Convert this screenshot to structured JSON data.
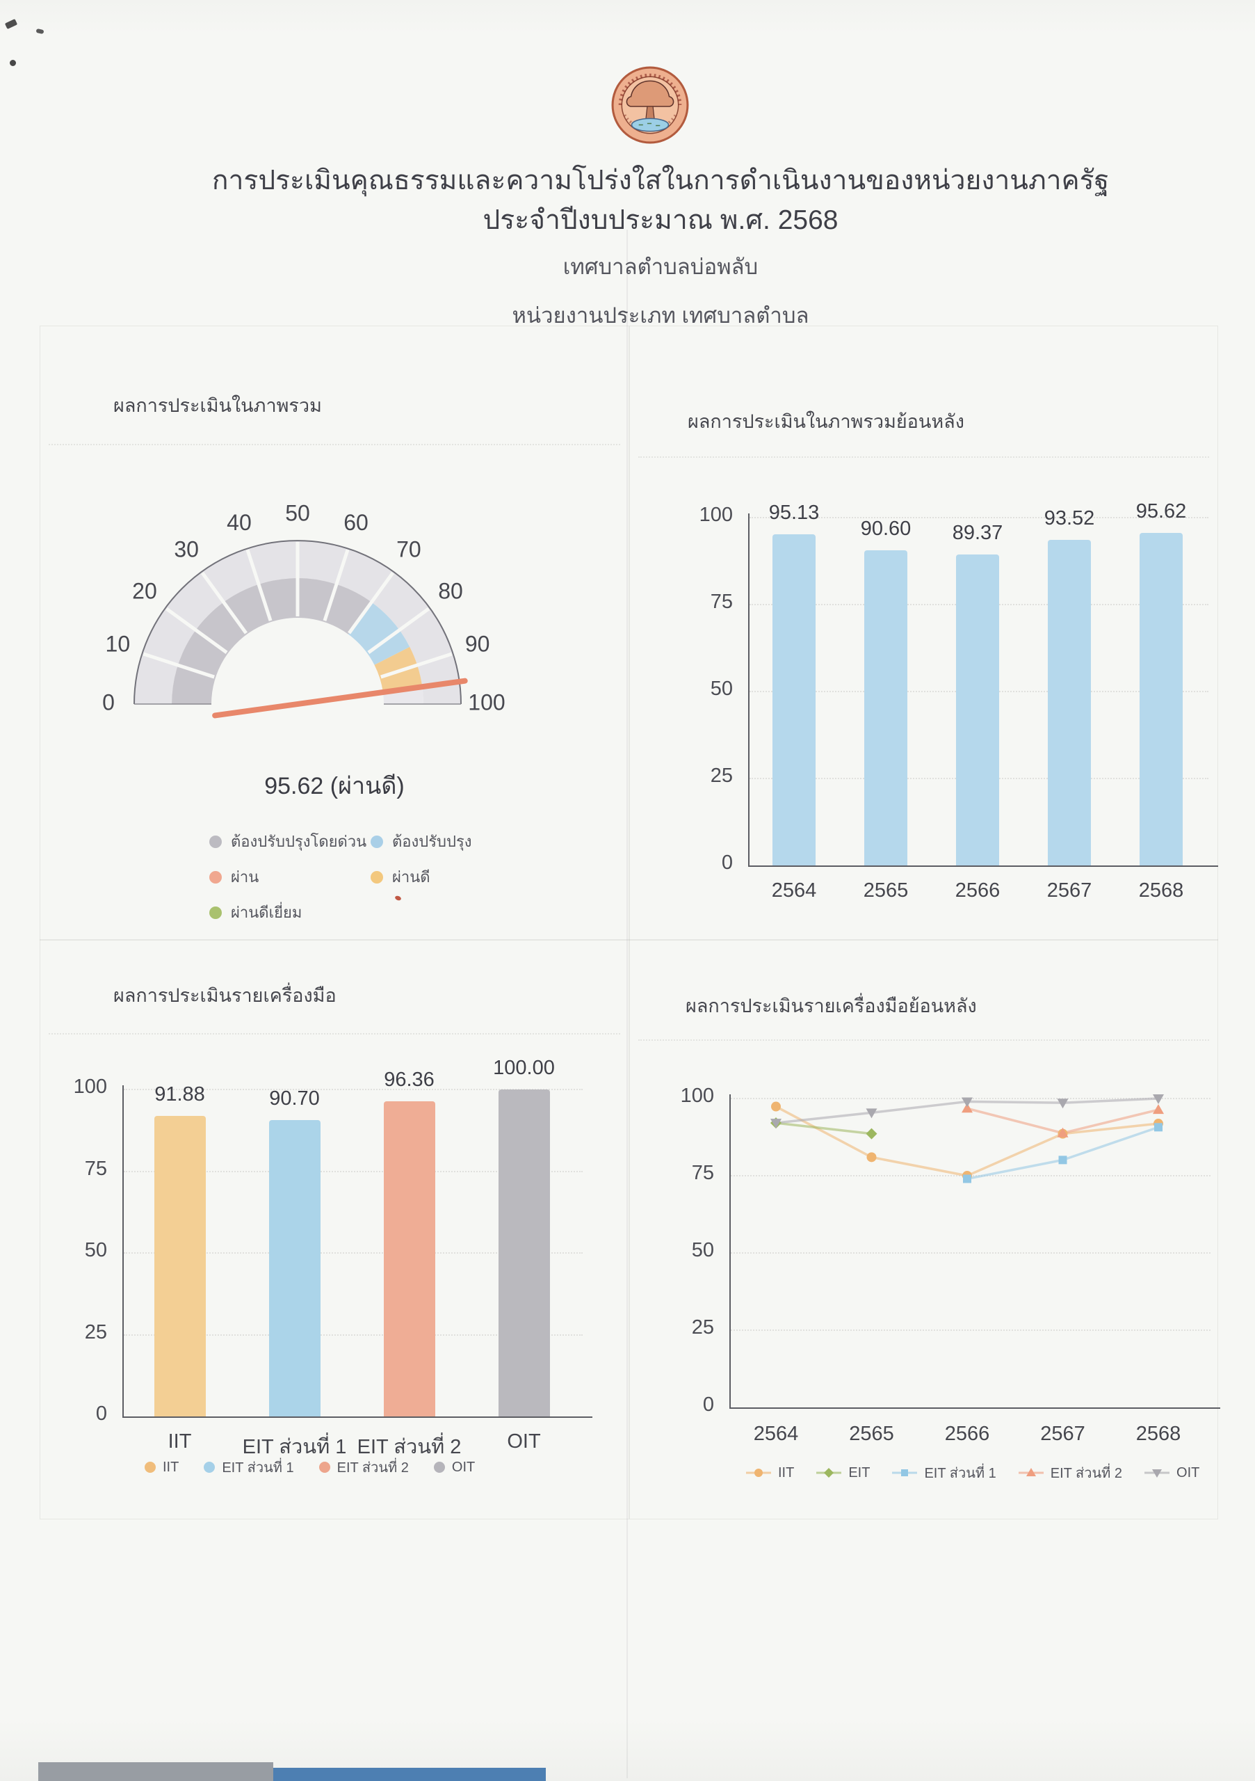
{
  "header": {
    "title_line1": "การประเมินคุณธรรมและความโปร่งใสในการดำเนินงานของหน่วยงานภาครัฐ",
    "title_line2": "ประจำปีงบประมาณ พ.ศ. 2568",
    "org_name": "เทศบาลตำบลบ่อพลับ",
    "org_type_line": "หน่วยงานประเภท เทศบาลตำบล"
  },
  "colors": {
    "page_bg": "#f6f7f4",
    "text_dark": "#3e3f47",
    "text_mid": "#54555d",
    "axis": "#5c5d63",
    "grid": "#cfcfcb",
    "bar_blue": "#b5d8ec",
    "bar_orange": "#f3cf94",
    "bar_salmon": "#efad95",
    "bar_gray": "#bab9be",
    "green": "#9cb75f",
    "needle": "#e8876a"
  },
  "chart_data": [
    {
      "type": "gauge",
      "title": "ผลการประเมินในภาพรวม",
      "min": 0,
      "max": 100,
      "tick_step": 10,
      "value": 95.62,
      "rating": "ผ่านดี",
      "value_label": "95.62 (ผ่านดี)",
      "bands": [
        {
          "from": 0,
          "to": 70,
          "color": "#c7c5cb"
        },
        {
          "from": 70,
          "to": 85,
          "color": "#b7d7ea"
        },
        {
          "from": 85,
          "to": 95.62,
          "color": "#f3cc90"
        },
        {
          "from": 95.62,
          "to": 100,
          "color": "#e9e8ec"
        }
      ],
      "needle_color": "#e8876a",
      "legend": [
        {
          "label": "ต้องปรับปรุงโดยด่วน",
          "color": "#bcbbc1"
        },
        {
          "label": "ต้องปรับปรุง",
          "color": "#a9cfe7"
        },
        {
          "label": "ผ่าน",
          "color": "#f0a78f"
        },
        {
          "label": "ผ่านดี",
          "color": "#f3c87e"
        },
        {
          "label": "ผ่านดีเยี่ยม",
          "color": "#a9c16e"
        }
      ]
    },
    {
      "type": "bar",
      "title": "ผลการประเมินในภาพรวมย้อนหลัง",
      "categories": [
        "2564",
        "2565",
        "2566",
        "2567",
        "2568"
      ],
      "values": [
        95.13,
        90.6,
        89.37,
        93.52,
        95.62
      ],
      "value_labels": [
        "95.13",
        "90.60",
        "89.37",
        "93.52",
        "95.62"
      ],
      "bar_color": "#b5d8ec",
      "ylim": [
        0,
        100
      ],
      "yticks": [
        0,
        25,
        50,
        75,
        100
      ],
      "grid": "dotted"
    },
    {
      "type": "bar",
      "title": "ผลการประเมินรายเครื่องมือ",
      "categories": [
        "IIT",
        "EIT ส่วนที่ 1",
        "EIT ส่วนที่ 2",
        "OIT"
      ],
      "values": [
        91.88,
        90.7,
        96.36,
        100.0
      ],
      "value_labels": [
        "91.88",
        "90.70",
        "96.36",
        "100.00"
      ],
      "bar_colors": [
        "#f3cf94",
        "#abd4e9",
        "#efad95",
        "#bab9be"
      ],
      "ylim": [
        0,
        100
      ],
      "yticks": [
        0,
        25,
        50,
        75,
        100
      ],
      "grid": "dotted",
      "legend": [
        {
          "label": "IIT",
          "color": "#f0bd7b"
        },
        {
          "label": "EIT ส่วนที่ 1",
          "color": "#a5d0e8"
        },
        {
          "label": "EIT ส่วนที่ 2",
          "color": "#eda58c"
        },
        {
          "label": "OIT",
          "color": "#b5b4ba"
        }
      ]
    },
    {
      "type": "line",
      "title": "ผลการประเมินรายเครื่องมือย้อนหลัง",
      "x": [
        "2564",
        "2565",
        "2566",
        "2567",
        "2568"
      ],
      "ylim": [
        0,
        100
      ],
      "yticks": [
        0,
        25,
        50,
        75,
        100
      ],
      "grid": "dotted",
      "series": [
        {
          "name": "IIT",
          "marker": "circle",
          "color": "#efb470",
          "values": [
            97.4,
            81.0,
            75.0,
            88.6,
            91.88
          ]
        },
        {
          "name": "EIT",
          "marker": "diamond",
          "color": "#9cb75f",
          "values": [
            92.1,
            88.6,
            null,
            null,
            null
          ]
        },
        {
          "name": "EIT ส่วนที่ 1",
          "marker": "square",
          "color": "#92c7e4",
          "values": [
            null,
            null,
            74.0,
            80.1,
            90.7
          ]
        },
        {
          "name": "EIT ส่วนที่ 2",
          "marker": "triangle",
          "color": "#ef9e7f",
          "values": [
            null,
            null,
            96.8,
            88.8,
            96.36
          ]
        },
        {
          "name": "OIT",
          "marker": "triangle-down",
          "color": "#a9a8ae",
          "values": [
            92.1,
            95.4,
            99.0,
            98.6,
            100.0
          ]
        }
      ]
    }
  ]
}
